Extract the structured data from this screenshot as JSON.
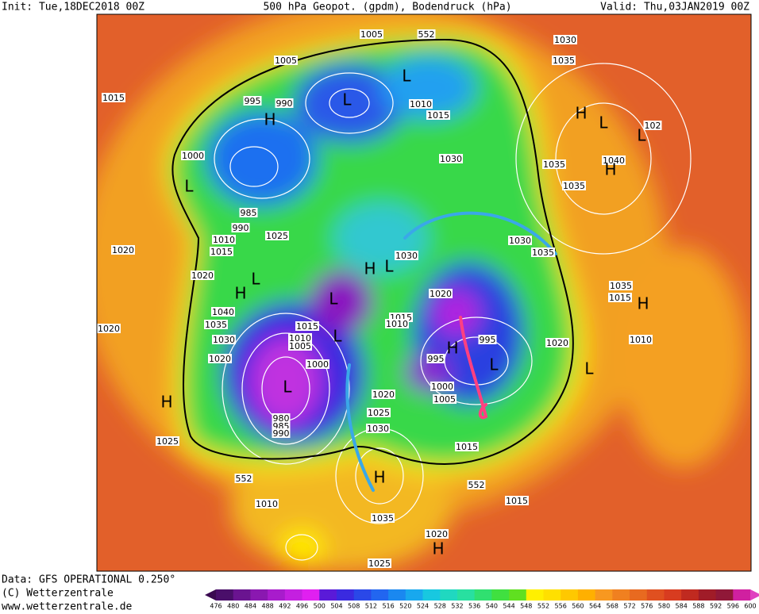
{
  "header": {
    "init": "Init: Tue,18DEC2018 00Z",
    "title": "500 hPa Geopot. (gpdm), Bodendruck (hPa)",
    "valid": "Valid: Thu,03JAN2019 00Z"
  },
  "footer": {
    "data": "Data: GFS OPERATIONAL 0.250°",
    "copyright": "(C) Wetterzentrale",
    "url": "www.wetterzentrale.de"
  },
  "map": {
    "pressure_labels": [
      "1005",
      "552",
      "1030",
      "1035",
      "1005",
      "1015",
      "995",
      "990",
      "1010",
      "1015",
      "1000",
      "1030",
      "1035",
      "1040",
      "1035",
      "985",
      "990",
      "1025",
      "1010",
      "1015",
      "1020",
      "1030",
      "1030",
      "1035",
      "1020",
      "1035",
      "1015",
      "1040",
      "1035",
      "1020",
      "1030",
      "1015",
      "1010",
      "1005",
      "1015",
      "1010",
      "995",
      "1020",
      "1010",
      "1020",
      "995",
      "1020",
      "1000",
      "1000",
      "1005",
      "1020",
      "1025",
      "980",
      "985",
      "990",
      "1030",
      "1015",
      "552",
      "552",
      "1015",
      "1010",
      "1035",
      "1020",
      "1025",
      "1025",
      "102"
    ],
    "centers": [
      "L",
      "L",
      "H",
      "H",
      "L",
      "L",
      "H",
      "L",
      "H",
      "L",
      "H",
      "L",
      "L",
      "H",
      "L",
      "L",
      "H",
      "L",
      "H",
      "H",
      "H",
      "L"
    ]
  },
  "colorbar": {
    "levels": [
      476,
      480,
      484,
      488,
      492,
      496,
      500,
      504,
      508,
      512,
      516,
      520,
      524,
      528,
      532,
      536,
      540,
      544,
      548,
      552,
      556,
      560,
      564,
      568,
      572,
      576,
      580,
      584,
      588,
      592,
      596,
      600
    ],
    "colors": [
      "#3a0a50",
      "#4a0f6a",
      "#6a1490",
      "#8a18b0",
      "#a81ccc",
      "#c420e0",
      "#e020f0",
      "#5a1ad8",
      "#3a2ae0",
      "#2a48e8",
      "#2266f0",
      "#1a88f0",
      "#18a8ee",
      "#18c8e0",
      "#20d8c0",
      "#28e0a0",
      "#30e070",
      "#40e040",
      "#60e020",
      "#fff000",
      "#ffe000",
      "#ffc800",
      "#ffb000",
      "#f89820",
      "#f08020",
      "#e86a20",
      "#e05020",
      "#d83c20",
      "#c02a20",
      "#a01c28",
      "#901838",
      "#d020a0",
      "#e040c0"
    ]
  }
}
